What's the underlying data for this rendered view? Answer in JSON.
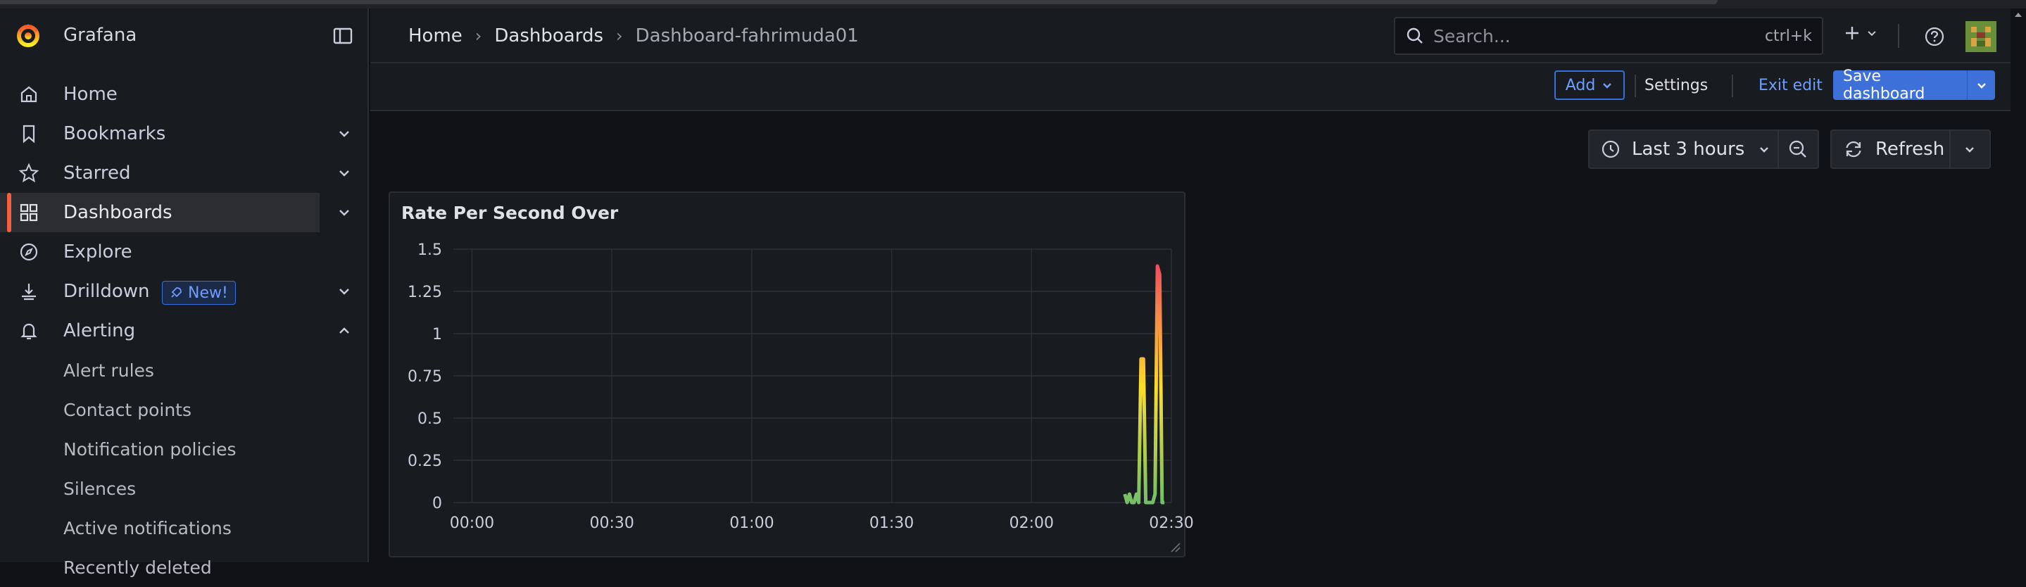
{
  "app": {
    "name": "Grafana"
  },
  "sidebar": {
    "items": [
      {
        "label": "Home",
        "icon": "home-icon"
      },
      {
        "label": "Bookmarks",
        "icon": "bookmark-icon",
        "chevron": "down"
      },
      {
        "label": "Starred",
        "icon": "star-icon",
        "chevron": "down"
      },
      {
        "label": "Dashboards",
        "icon": "apps-icon",
        "chevron": "down",
        "active": true
      },
      {
        "label": "Explore",
        "icon": "compass-icon"
      },
      {
        "label": "Drilldown",
        "icon": "drilldown-icon",
        "chevron": "down",
        "badge": "New!"
      },
      {
        "label": "Alerting",
        "icon": "bell-icon",
        "chevron": "up"
      }
    ],
    "alerting_sub": [
      "Alert rules",
      "Contact points",
      "Notification policies",
      "Silences",
      "Active notifications",
      "Recently deleted"
    ]
  },
  "breadcrumb": [
    "Home",
    "Dashboards",
    "Dashboard-fahrimuda01"
  ],
  "search": {
    "placeholder": "Search...",
    "shortcut": "ctrl+k"
  },
  "toolbar": {
    "add_label": "Add",
    "settings_label": "Settings",
    "exit_label": "Exit edit",
    "save_label": "Save dashboard"
  },
  "time": {
    "range_label": "Last 3 hours",
    "refresh_label": "Refresh"
  },
  "panel": {
    "title": "Rate Per Second Over"
  },
  "colors": {
    "accent": "#3d71d9",
    "active_marker": "#f55f3e",
    "series_low": "#73bf69",
    "series_mid": "#fade2a",
    "series_high": "#f2495c"
  },
  "chart_data": {
    "type": "line",
    "title": "Rate Per Second Over",
    "xlabel": "",
    "ylabel": "",
    "x_ticks": [
      "00:00",
      "00:30",
      "01:00",
      "01:30",
      "02:00",
      "02:30"
    ],
    "y_ticks": [
      "0",
      "0.25",
      "0.5",
      "0.75",
      "1",
      "1.25",
      "1.5"
    ],
    "ylim": [
      0,
      1.5
    ],
    "xlim_minutes": [
      -4,
      150
    ],
    "grid": true,
    "series": [
      {
        "x": [
          140,
          140.5,
          141,
          141.5,
          142,
          142.5,
          143,
          143.5,
          144,
          144.5,
          145,
          145.5,
          146,
          146.5,
          147,
          147.5,
          148,
          148.5
        ],
        "values": [
          0.05,
          0.0,
          0.05,
          0.0,
          0.0,
          0.05,
          0.0,
          0.85,
          0.85,
          0.0,
          0.0,
          0.0,
          0.0,
          0.05,
          1.4,
          1.35,
          0.0,
          0.0
        ]
      }
    ]
  }
}
